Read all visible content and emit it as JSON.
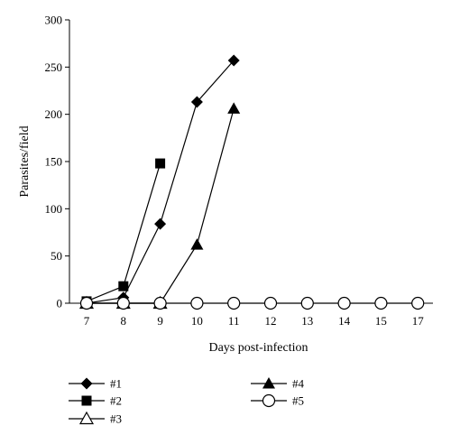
{
  "chart_data": {
    "type": "line",
    "title": "",
    "xlabel": "Days post-infection",
    "ylabel": "Parasites/field",
    "x": [
      "7",
      "8",
      "9",
      "10",
      "11",
      "12",
      "13",
      "14",
      "15",
      "17"
    ],
    "ylim": [
      0,
      300
    ],
    "yticks": [
      0,
      50,
      100,
      150,
      200,
      250,
      300
    ],
    "grid": false,
    "legend_position": "bottom",
    "series": [
      {
        "name": "#1",
        "marker": "diamond-filled",
        "values": [
          0,
          6,
          84,
          213,
          257,
          null,
          null,
          null,
          null,
          null
        ]
      },
      {
        "name": "#2",
        "marker": "square-filled",
        "values": [
          2,
          18,
          148,
          null,
          null,
          null,
          null,
          null,
          null,
          null
        ]
      },
      {
        "name": "#3",
        "marker": "triangle-open",
        "values": [
          0,
          0,
          0,
          null,
          null,
          null,
          null,
          null,
          null,
          null
        ]
      },
      {
        "name": "#4",
        "marker": "triangle-filled",
        "values": [
          0,
          0,
          0,
          62,
          206,
          null,
          null,
          null,
          null,
          null
        ]
      },
      {
        "name": "#5",
        "marker": "circle-open",
        "values": [
          0,
          0,
          0,
          0,
          0,
          0,
          0,
          0,
          0,
          0
        ]
      }
    ]
  }
}
